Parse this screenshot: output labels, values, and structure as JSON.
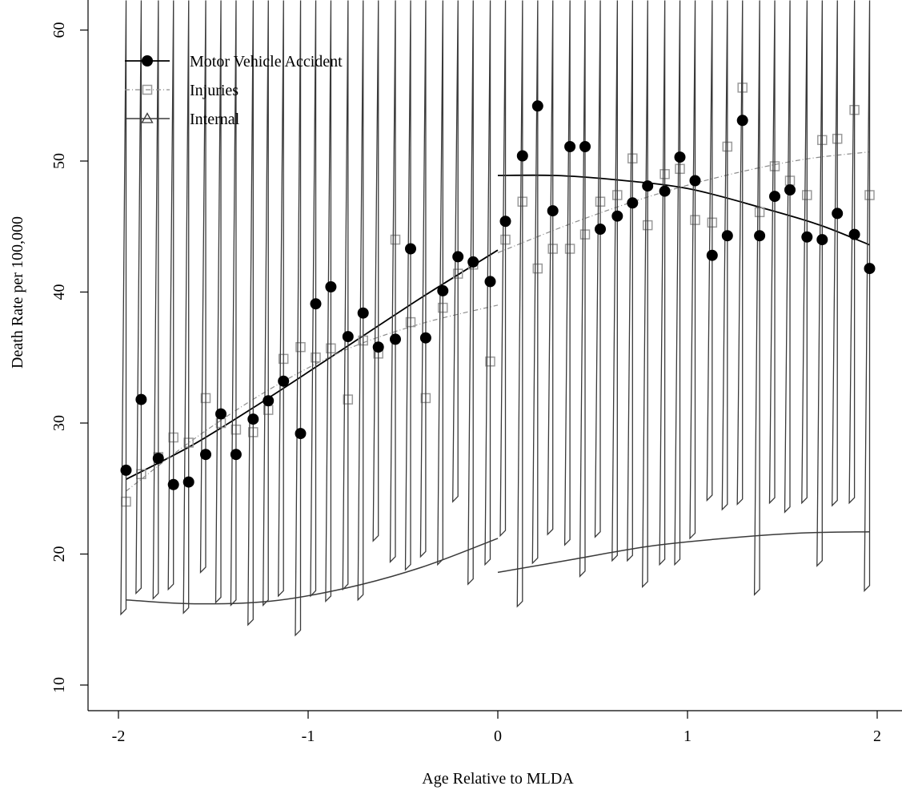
{
  "chart_data": {
    "type": "scatter",
    "xlabel": "Age Relative to MLDA",
    "ylabel": "Death Rate per 100,000",
    "xlim": [
      -2.1,
      2.15
    ],
    "ylim": [
      8.5,
      62
    ],
    "xticks": [
      -2,
      -1,
      0,
      1,
      2
    ],
    "xtick_labels": [
      "-2",
      "-1",
      "0",
      "1",
      "2"
    ],
    "yticks": [
      10,
      20,
      30,
      40,
      50,
      60
    ],
    "ytick_labels": [
      "10",
      "20",
      "30",
      "40",
      "50",
      "60"
    ],
    "grid": false,
    "legend_position": "top-left",
    "series": [
      {
        "name": "Motor Vehicle Accident",
        "marker": "filled-circle",
        "color": "#000000",
        "points": [
          [
            -1.96,
            26.4
          ],
          [
            -1.88,
            31.8
          ],
          [
            -1.79,
            27.3
          ],
          [
            -1.71,
            25.3
          ],
          [
            -1.63,
            25.5
          ],
          [
            -1.54,
            27.6
          ],
          [
            -1.46,
            30.7
          ],
          [
            -1.38,
            27.6
          ],
          [
            -1.29,
            30.3
          ],
          [
            -1.21,
            31.7
          ],
          [
            -1.13,
            33.2
          ],
          [
            -1.04,
            29.2
          ],
          [
            -0.96,
            39.1
          ],
          [
            -0.88,
            40.4
          ],
          [
            -0.79,
            36.6
          ],
          [
            -0.71,
            38.4
          ],
          [
            -0.63,
            35.8
          ],
          [
            -0.54,
            36.4
          ],
          [
            -0.46,
            43.3
          ],
          [
            -0.38,
            36.5
          ],
          [
            -0.29,
            40.1
          ],
          [
            -0.21,
            42.7
          ],
          [
            -0.13,
            42.3
          ],
          [
            -0.04,
            40.8
          ],
          [
            0.04,
            45.4
          ],
          [
            0.13,
            50.4
          ],
          [
            0.21,
            54.2
          ],
          [
            0.29,
            46.2
          ],
          [
            0.38,
            51.1
          ],
          [
            0.46,
            51.1
          ],
          [
            0.54,
            44.8
          ],
          [
            0.63,
            45.8
          ],
          [
            0.71,
            46.8
          ],
          [
            0.79,
            48.1
          ],
          [
            0.88,
            47.7
          ],
          [
            0.96,
            50.3
          ],
          [
            1.04,
            48.5
          ],
          [
            1.13,
            42.8
          ],
          [
            1.21,
            44.3
          ],
          [
            1.29,
            53.1
          ],
          [
            1.38,
            44.3
          ],
          [
            1.46,
            47.3
          ],
          [
            1.54,
            47.8
          ],
          [
            1.63,
            44.2
          ],
          [
            1.71,
            44.0
          ],
          [
            1.79,
            46.0
          ],
          [
            1.88,
            44.4
          ],
          [
            1.96,
            41.8
          ]
        ],
        "fit": [
          [
            [
              -1.96,
              25.7
            ],
            [
              -1.6,
              28.4
            ],
            [
              -1.2,
              32.0
            ],
            [
              -0.8,
              35.8
            ],
            [
              -0.4,
              39.6
            ],
            [
              0,
              43.2
            ]
          ],
          [
            [
              0,
              48.9
            ],
            [
              0.3,
              48.9
            ],
            [
              0.6,
              48.6
            ],
            [
              1.0,
              47.9
            ],
            [
              1.4,
              46.4
            ],
            [
              1.7,
              45.1
            ],
            [
              1.96,
              43.6
            ]
          ]
        ]
      },
      {
        "name": "Injuries",
        "marker": "open-square",
        "color": "#9a9a9a",
        "points": [
          [
            -1.96,
            24.0
          ],
          [
            -1.88,
            26.1
          ],
          [
            -1.79,
            27.4
          ],
          [
            -1.71,
            28.9
          ],
          [
            -1.63,
            28.5
          ],
          [
            -1.54,
            31.9
          ],
          [
            -1.46,
            30.0
          ],
          [
            -1.38,
            29.5
          ],
          [
            -1.29,
            29.3
          ],
          [
            -1.21,
            31.0
          ],
          [
            -1.13,
            34.9
          ],
          [
            -1.04,
            35.8
          ],
          [
            -0.96,
            35.0
          ],
          [
            -0.88,
            35.7
          ],
          [
            -0.79,
            31.8
          ],
          [
            -0.71,
            36.3
          ],
          [
            -0.63,
            35.3
          ],
          [
            -0.54,
            44.0
          ],
          [
            -0.46,
            37.7
          ],
          [
            -0.38,
            31.9
          ],
          [
            -0.29,
            38.8
          ],
          [
            -0.21,
            41.4
          ],
          [
            -0.13,
            42.1
          ],
          [
            -0.04,
            34.7
          ],
          [
            0.04,
            44.0
          ],
          [
            0.13,
            46.9
          ],
          [
            0.21,
            41.8
          ],
          [
            0.29,
            43.3
          ],
          [
            0.38,
            43.3
          ],
          [
            0.46,
            44.4
          ],
          [
            0.54,
            46.9
          ],
          [
            0.63,
            47.4
          ],
          [
            0.71,
            50.2
          ],
          [
            0.79,
            45.1
          ],
          [
            0.88,
            49.0
          ],
          [
            0.96,
            49.4
          ],
          [
            1.04,
            45.5
          ],
          [
            1.13,
            45.3
          ],
          [
            1.21,
            51.1
          ],
          [
            1.29,
            55.6
          ],
          [
            1.38,
            46.1
          ],
          [
            1.46,
            49.6
          ],
          [
            1.54,
            48.5
          ],
          [
            1.63,
            47.4
          ],
          [
            1.71,
            51.6
          ],
          [
            1.79,
            51.7
          ],
          [
            1.88,
            53.9
          ],
          [
            1.96,
            47.4
          ]
        ],
        "fit": [
          [
            [
              -1.96,
              24.8
            ],
            [
              -1.6,
              28.8
            ],
            [
              -1.2,
              32.6
            ],
            [
              -0.8,
              35.6
            ],
            [
              -0.4,
              37.6
            ],
            [
              0,
              39.0
            ]
          ],
          [
            [
              0,
              43.0
            ],
            [
              0.4,
              45.3
            ],
            [
              0.8,
              47.3
            ],
            [
              1.2,
              48.9
            ],
            [
              1.6,
              50.1
            ],
            [
              1.96,
              50.7
            ]
          ]
        ]
      },
      {
        "name": "Internal",
        "marker": "open-triangle",
        "color": "#3a3a3a",
        "points": [
          [
            -1.96,
            15.4
          ],
          [
            -1.88,
            17.0
          ],
          [
            -1.79,
            16.6
          ],
          [
            -1.71,
            17.3
          ],
          [
            -1.63,
            15.5
          ],
          [
            -1.54,
            18.6
          ],
          [
            -1.46,
            16.3
          ],
          [
            -1.38,
            16.1
          ],
          [
            -1.29,
            14.6
          ],
          [
            -1.21,
            16.1
          ],
          [
            -1.13,
            16.8
          ],
          [
            -1.04,
            13.8
          ],
          [
            -0.96,
            16.8
          ],
          [
            -0.88,
            16.4
          ],
          [
            -0.79,
            17.3
          ],
          [
            -0.71,
            16.5
          ],
          [
            -0.63,
            21.0
          ],
          [
            -0.54,
            19.4
          ],
          [
            -0.46,
            18.8
          ],
          [
            -0.38,
            19.8
          ],
          [
            -0.29,
            19.2
          ],
          [
            -0.21,
            24.0
          ],
          [
            -0.13,
            17.7
          ],
          [
            -0.04,
            19.2
          ],
          [
            0.04,
            21.4
          ],
          [
            0.13,
            16.0
          ],
          [
            0.21,
            19.3
          ],
          [
            0.29,
            21.5
          ],
          [
            0.38,
            20.7
          ],
          [
            0.46,
            18.3
          ],
          [
            0.54,
            21.3
          ],
          [
            0.63,
            19.5
          ],
          [
            0.71,
            19.5
          ],
          [
            0.79,
            17.5
          ],
          [
            0.88,
            19.2
          ],
          [
            0.96,
            19.2
          ],
          [
            1.04,
            21.2
          ],
          [
            1.13,
            24.1
          ],
          [
            1.21,
            23.4
          ],
          [
            1.29,
            23.8
          ],
          [
            1.38,
            16.9
          ],
          [
            1.46,
            23.9
          ],
          [
            1.54,
            23.2
          ],
          [
            1.63,
            23.9
          ],
          [
            1.71,
            19.1
          ],
          [
            1.79,
            23.7
          ],
          [
            1.88,
            23.9
          ],
          [
            1.96,
            17.2
          ]
        ],
        "fit": [
          [
            [
              -1.96,
              16.5
            ],
            [
              -1.6,
              16.2
            ],
            [
              -1.2,
              16.4
            ],
            [
              -0.8,
              17.4
            ],
            [
              -0.4,
              19.0
            ],
            [
              0,
              21.2
            ]
          ],
          [
            [
              0,
              18.6
            ],
            [
              0.4,
              19.6
            ],
            [
              0.8,
              20.6
            ],
            [
              1.2,
              21.2
            ],
            [
              1.6,
              21.6
            ],
            [
              1.96,
              21.7
            ]
          ]
        ]
      }
    ]
  }
}
